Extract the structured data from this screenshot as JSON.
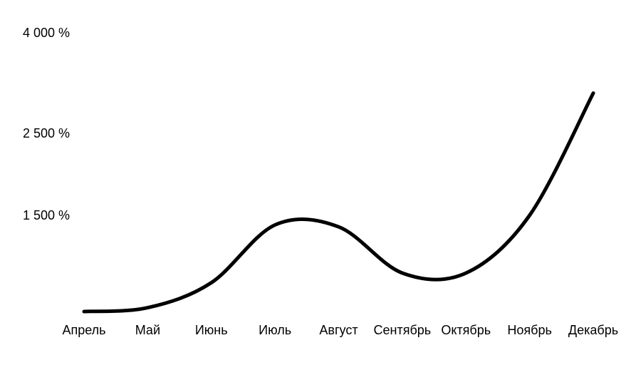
{
  "chart_data": {
    "type": "line",
    "title": "",
    "xlabel": "",
    "ylabel": "",
    "categories": [
      "Апрель",
      "Май",
      "Июнь",
      "Июль",
      "Август",
      "Сентябрь",
      "Октябрь",
      "Ноябрь",
      "Декабрь"
    ],
    "y_ticks": [
      {
        "value": 1500,
        "label": "1 500 %"
      },
      {
        "value": 2500,
        "label": "2 500 %"
      },
      {
        "value": 4000,
        "label": "4 000 %"
      }
    ],
    "series": [
      {
        "values": [
          0,
          60,
          450,
          1350,
          1320,
          600,
          600,
          1500,
          3100
        ],
        "color": "#000000"
      }
    ],
    "grid": false,
    "legend": "none"
  }
}
